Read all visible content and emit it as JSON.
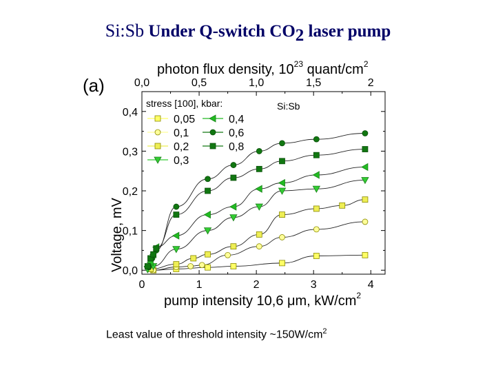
{
  "slide": {
    "title_part1": "Si:Sb",
    "title_part2": " Under Q-switch CO",
    "title_sub": "2",
    "title_part3": " laser pump",
    "caption_main": "Least value of threshold intensity ~150W/cm",
    "caption_sup": "2"
  },
  "chart_data": {
    "type": "scatter",
    "panel_label": "(a)",
    "sample_label": "Si:Sb",
    "xlabel": "pump intensity 10,6 μm, kW/cm",
    "xlabel_sup": "2",
    "top_xlabel": "photon flux density, 10",
    "top_xlabel_sup": "23",
    "top_xlabel_suffix": " quant/cm",
    "top_xlabel_suffix_sup": "2",
    "ylabel": "Voltage, mV",
    "xlim": [
      0,
      4.25
    ],
    "ylim": [
      -0.01,
      0.45
    ],
    "x_ticks": [
      {
        "v": 0,
        "label": "0"
      },
      {
        "v": 1,
        "label": "1"
      },
      {
        "v": 2,
        "label": "2"
      },
      {
        "v": 3,
        "label": "3"
      },
      {
        "v": 4,
        "label": "4"
      }
    ],
    "y_ticks": [
      {
        "v": 0.0,
        "label": "0,0"
      },
      {
        "v": 0.1,
        "label": "0,1"
      },
      {
        "v": 0.2,
        "label": "0,2"
      },
      {
        "v": 0.3,
        "label": "0,3"
      },
      {
        "v": 0.4,
        "label": "0,4"
      }
    ],
    "top_ticks": [
      {
        "v": 0,
        "label": "0,0"
      },
      {
        "v": 1,
        "label": "0,5"
      },
      {
        "v": 2,
        "label": "1,0"
      },
      {
        "v": 3,
        "label": "1,5"
      },
      {
        "v": 4,
        "label": "2"
      }
    ],
    "legend_title": "stress [100], kbar:",
    "grid": false,
    "series": [
      {
        "name": "0,05",
        "marker": "square",
        "color": "#ffff66",
        "edge": "#8a8a00",
        "x": [
          0.2,
          0.6,
          1.15,
          1.6,
          2.45,
          3.05,
          3.9
        ],
        "y": [
          0.0,
          0.003,
          0.007,
          0.01,
          0.018,
          0.036,
          0.038
        ]
      },
      {
        "name": "0,1",
        "marker": "circle",
        "color": "#ffff99",
        "edge": "#8a8a00",
        "x": [
          0.2,
          0.6,
          0.85,
          1.05,
          1.5,
          2.05,
          2.45,
          3.05,
          3.9
        ],
        "y": [
          0.0,
          0.008,
          0.01,
          0.013,
          0.038,
          0.06,
          0.083,
          0.103,
          0.122
        ]
      },
      {
        "name": "0,2",
        "marker": "square",
        "color": "#eeee55",
        "edge": "#8a8a00",
        "x": [
          0.15,
          0.6,
          0.9,
          1.15,
          1.6,
          2.05,
          2.45,
          3.05,
          3.5,
          3.9
        ],
        "y": [
          0.003,
          0.015,
          0.03,
          0.04,
          0.06,
          0.09,
          0.14,
          0.155,
          0.163,
          0.178
        ]
      },
      {
        "name": "0,3",
        "marker": "triangle-down",
        "color": "#33cc33",
        "edge": "#1a801a",
        "x": [
          0.1,
          0.2,
          0.6,
          1.15,
          1.6,
          2.05,
          2.45,
          3.05,
          3.9
        ],
        "y": [
          0.002,
          0.01,
          0.053,
          0.1,
          0.133,
          0.16,
          0.2,
          0.205,
          0.227
        ]
      },
      {
        "name": "0,4",
        "marker": "triangle-left",
        "color": "#22bb22",
        "edge": "#1a801a",
        "x": [
          0.1,
          0.15,
          0.2,
          0.25,
          0.6,
          1.15,
          1.6,
          2.05,
          2.45,
          3.05,
          3.9
        ],
        "y": [
          0.01,
          0.02,
          0.04,
          0.058,
          0.087,
          0.14,
          0.16,
          0.205,
          0.22,
          0.24,
          0.26
        ]
      },
      {
        "name": "0,6",
        "marker": "circle",
        "color": "#117711",
        "edge": "#0a4f0a",
        "x": [
          0.12,
          0.18,
          0.25,
          0.6,
          1.15,
          1.6,
          2.05,
          2.45,
          3.05,
          3.9
        ],
        "y": [
          0.008,
          0.03,
          0.05,
          0.16,
          0.23,
          0.265,
          0.3,
          0.32,
          0.33,
          0.345
        ]
      },
      {
        "name": "0,8",
        "marker": "square",
        "color": "#117711",
        "edge": "#0a4f0a",
        "x": [
          0.1,
          0.15,
          0.2,
          0.25,
          0.6,
          1.15,
          1.6,
          2.05,
          2.45,
          3.05,
          3.9
        ],
        "y": [
          0.01,
          0.03,
          0.04,
          0.055,
          0.14,
          0.2,
          0.233,
          0.255,
          0.275,
          0.29,
          0.305
        ]
      }
    ]
  }
}
